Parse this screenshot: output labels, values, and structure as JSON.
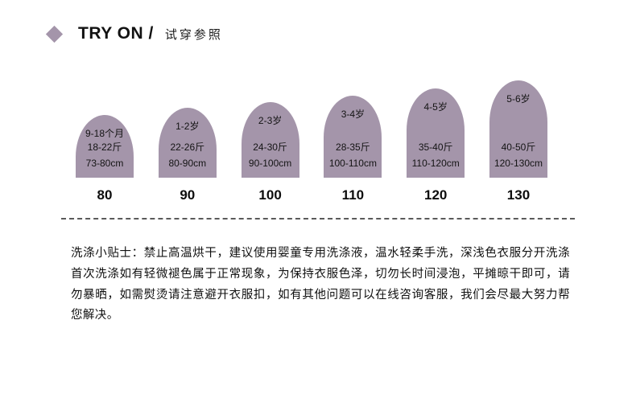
{
  "colors": {
    "accent": "#a495aa"
  },
  "header": {
    "title_en": "TRY ON /",
    "title_zh": "试穿参照"
  },
  "sizes": [
    {
      "age": "9-18个月",
      "weight": "18-22斤",
      "height": "73-80cm",
      "size": "80"
    },
    {
      "age": "1-2岁",
      "weight": "22-26斤",
      "height": "80-90cm",
      "size": "90"
    },
    {
      "age": "2-3岁",
      "weight": "24-30斤",
      "height": "90-100cm",
      "size": "100"
    },
    {
      "age": "3-4岁",
      "weight": "28-35斤",
      "height": "100-110cm",
      "size": "110"
    },
    {
      "age": "4-5岁",
      "weight": "35-40斤",
      "height": "110-120cm",
      "size": "120"
    },
    {
      "age": "5-6岁",
      "weight": "40-50斤",
      "height": "120-130cm",
      "size": "130"
    }
  ],
  "care_tips": "洗涤小贴士：禁止高温烘干，建议使用婴童专用洗涤液，温水轻柔手洗，深浅色衣服分开洗涤首次洗涤如有轻微褪色属于正常现象，为保持衣服色泽，切勿长时间浸泡，平摊晾干即可，请勿暴晒，如需熨烫请注意避开衣服扣，如有其他问题可以在线咨询客服，我们会尽最大努力帮您解决。"
}
